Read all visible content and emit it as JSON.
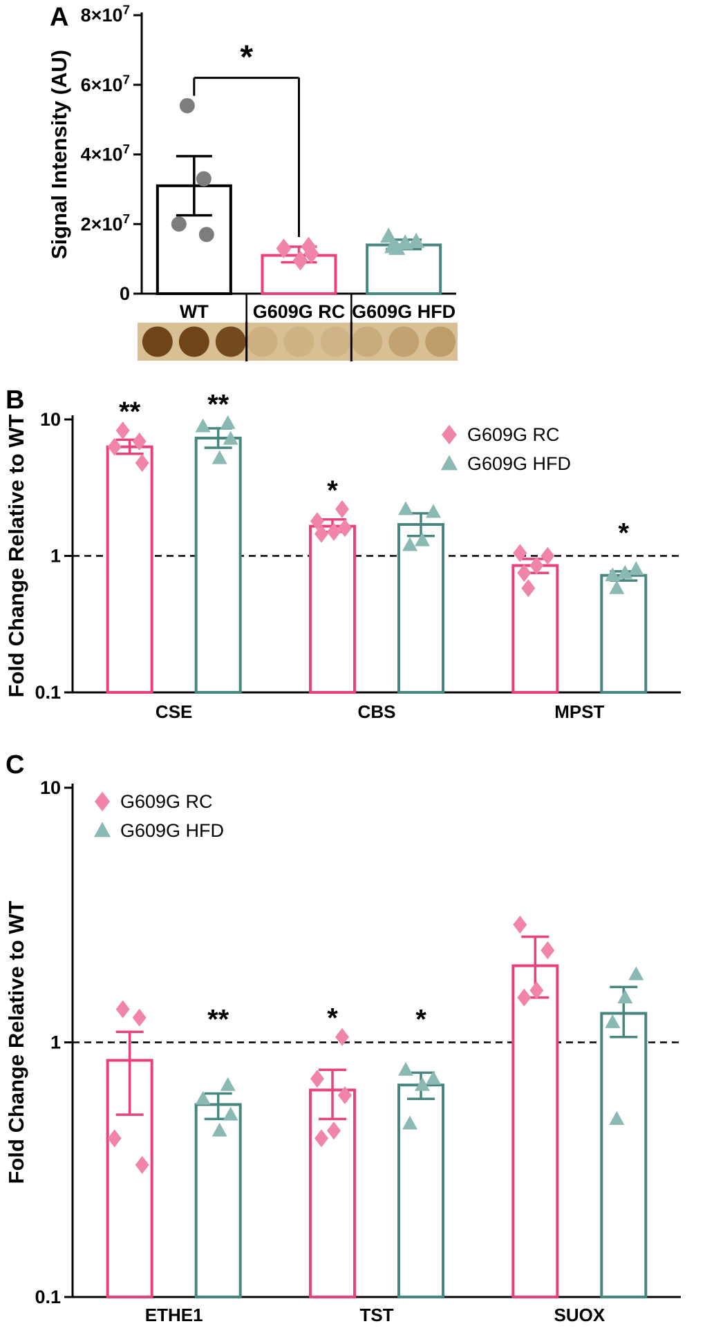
{
  "panels": [
    {
      "label": "A"
    },
    {
      "label": "B"
    },
    {
      "label": "C"
    }
  ],
  "colors": {
    "wt_bar": "#000000",
    "wt_point": "#7d7d7d",
    "rc_bar": "#e8417c",
    "rc_point": "#f084ab",
    "hfd_bar": "#46867f",
    "hfd_point": "#8ab8b3",
    "axis": "#000000"
  },
  "chart_data": [
    {
      "type": "bar",
      "panel": "A",
      "ylabel": "Signal Intensity (AU)",
      "ylim": [
        0,
        80000000
      ],
      "yticks": [
        {
          "value": 0,
          "label": "0"
        },
        {
          "value": 20000000,
          "label": "2×10^7"
        },
        {
          "value": 40000000,
          "label": "4×10^7"
        },
        {
          "value": 60000000,
          "label": "6×10^7"
        },
        {
          "value": 80000000,
          "label": "8×10^7"
        }
      ],
      "categories": [
        "WT",
        "G609G RC",
        "G609G HFD"
      ],
      "bars": [
        {
          "category": "WT",
          "mean": 31000000,
          "sem_upper": 39500000,
          "sem_lower": 22500000,
          "color": "#000000",
          "point_color": "#7d7d7d",
          "marker": "circle",
          "points": [
            54000000,
            33000000,
            20000000,
            17000000
          ]
        },
        {
          "category": "G609G RC",
          "mean": 11000000,
          "sem_upper": 13500000,
          "sem_lower": 9000000,
          "color": "#e8417c",
          "point_color": "#f084ab",
          "marker": "diamond",
          "points": [
            13500000,
            13000000,
            11500000,
            9500000
          ]
        },
        {
          "category": "G609G HFD",
          "mean": 14000000,
          "sem_upper": 15500000,
          "sem_lower": 12800000,
          "color": "#46867f",
          "point_color": "#8ab8b3",
          "marker": "triangle",
          "points": [
            16500000,
            15000000,
            14500000,
            13500000,
            13000000
          ]
        }
      ],
      "significance": {
        "label": "*",
        "from": "WT",
        "to": "G609G RC",
        "bracket_value": 62000000
      },
      "blot": {
        "background": "#d8c094",
        "separator_color": "#000000",
        "groups": [
          {
            "category": "WT",
            "dot_color": "#6f4418",
            "dot_opacities": [
              1,
              1,
              0.95
            ]
          },
          {
            "category": "G609G RC",
            "dot_color": "#b08a50",
            "dot_opacities": [
              0.3,
              0.25,
              0.22
            ]
          },
          {
            "category": "G609G HFD",
            "dot_color": "#a27a3e",
            "dot_opacities": [
              0.28,
              0.42,
              0.5
            ]
          }
        ]
      }
    },
    {
      "type": "grouped_bar_log",
      "panel": "B",
      "ylabel": "Fold Change Relative to WT",
      "ylim": [
        0.1,
        10
      ],
      "yticks": [
        {
          "value": 10,
          "label": "10"
        },
        {
          "value": 1,
          "label": "1"
        },
        {
          "value": 0.1,
          "label": "0.1"
        }
      ],
      "reference_line": 1,
      "categories": [
        "CSE",
        "CBS",
        "MPST"
      ],
      "legend": {
        "position": "top-right",
        "entries": [
          {
            "label": "G609G RC",
            "marker": "diamond"
          },
          {
            "label": "G609G HFD",
            "marker": "triangle"
          }
        ]
      },
      "series": [
        {
          "name": "G609G RC",
          "marker": "diamond",
          "bar_color": "#e8417c",
          "point_color": "#f084ab",
          "means": [
            6.3,
            1.65,
            0.85
          ],
          "sem_upper": [
            7.1,
            1.85,
            0.95
          ],
          "sem_lower": [
            5.6,
            1.5,
            0.75
          ],
          "points": [
            [
              8.3,
              6.9,
              6.3,
              4.8
            ],
            [
              2.2,
              1.8,
              1.6,
              1.5,
              1.45
            ],
            [
              1.05,
              1.0,
              0.85,
              0.75,
              0.58
            ]
          ],
          "significance": [
            "**",
            "*",
            ""
          ]
        },
        {
          "name": "G609G HFD",
          "marker": "triangle",
          "bar_color": "#46867f",
          "point_color": "#8ab8b3",
          "means": [
            7.3,
            1.7,
            0.72
          ],
          "sem_upper": [
            8.6,
            2.05,
            0.77
          ],
          "sem_lower": [
            6.2,
            1.4,
            0.66
          ],
          "points": [
            [
              9.4,
              8.9,
              7.2,
              5.2
            ],
            [
              2.2,
              2.1,
              1.3,
              1.2
            ],
            [
              0.8,
              0.75,
              0.72,
              0.58
            ]
          ],
          "significance": [
            "**",
            "",
            "*"
          ]
        }
      ]
    },
    {
      "type": "grouped_bar_log",
      "panel": "C",
      "ylabel": "Fold Change Relative to WT",
      "ylim": [
        0.1,
        10
      ],
      "yticks": [
        {
          "value": 10,
          "label": "10"
        },
        {
          "value": 1,
          "label": "1"
        },
        {
          "value": 0.1,
          "label": "0.1"
        }
      ],
      "reference_line": 1,
      "categories": [
        "ETHE1",
        "TST",
        "SUOX"
      ],
      "legend": {
        "position": "top-left",
        "entries": [
          {
            "label": "G609G RC",
            "marker": "diamond"
          },
          {
            "label": "G609G HFD",
            "marker": "triangle"
          }
        ]
      },
      "series": [
        {
          "name": "G609G RC",
          "marker": "diamond",
          "bar_color": "#e8417c",
          "point_color": "#f084ab",
          "means": [
            0.85,
            0.65,
            2.0
          ],
          "sem_upper": [
            1.1,
            0.78,
            2.6
          ],
          "sem_lower": [
            0.52,
            0.5,
            1.5
          ],
          "points": [
            [
              1.35,
              1.25,
              0.42,
              0.33
            ],
            [
              1.05,
              0.72,
              0.62,
              0.45,
              0.42
            ],
            [
              2.9,
              2.3,
              1.6,
              1.5
            ]
          ],
          "significance": [
            "",
            "*",
            ""
          ]
        },
        {
          "name": "G609G HFD",
          "marker": "triangle",
          "bar_color": "#46867f",
          "point_color": "#8ab8b3",
          "means": [
            0.57,
            0.68,
            1.3
          ],
          "sem_upper": [
            0.63,
            0.76,
            1.65
          ],
          "sem_lower": [
            0.5,
            0.6,
            1.05
          ],
          "points": [
            [
              0.68,
              0.6,
              0.52,
              0.45
            ],
            [
              0.78,
              0.72,
              0.68,
              0.48
            ],
            [
              1.85,
              1.5,
              1.2,
              0.5
            ]
          ],
          "significance": [
            "**",
            "*",
            ""
          ]
        }
      ]
    }
  ]
}
